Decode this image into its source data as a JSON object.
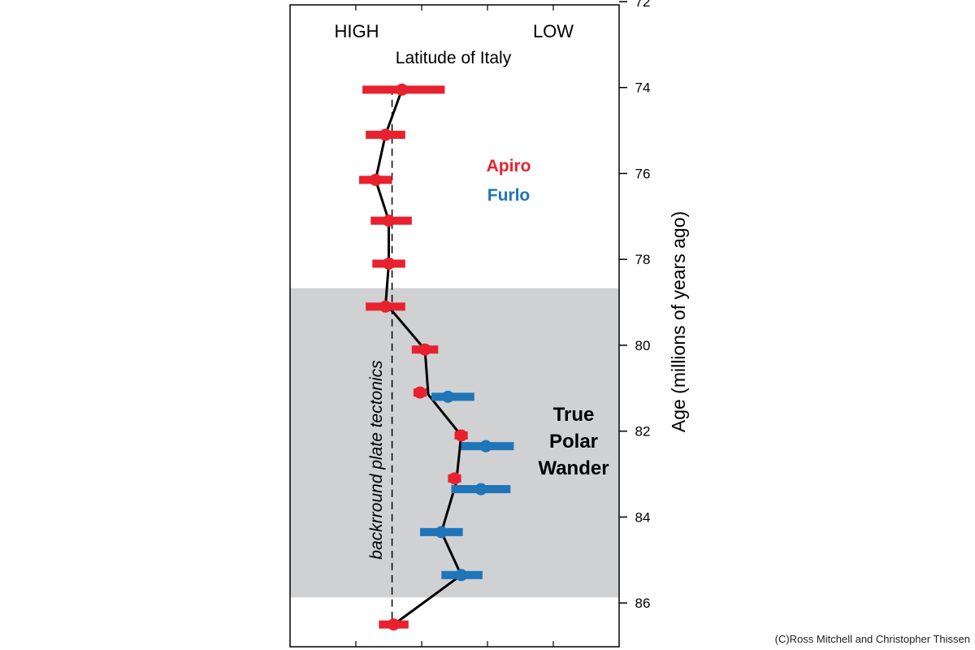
{
  "credit": "(C)Ross Mitchell and Christopher Thissen",
  "chart_data": {
    "type": "scatter",
    "title": "Latitude of Italy",
    "x_left_label": "HIGH",
    "x_right_label": "LOW",
    "ylabel": "Age (millions of years ago)",
    "ylim": [
      72,
      87
    ],
    "y_inverted": true,
    "yticks": [
      "72",
      "74",
      "76",
      "78",
      "80",
      "82",
      "84",
      "86"
    ],
    "xlim": [
      0,
      10
    ],
    "shaded_region": {
      "from": 78.67,
      "to": 85.87,
      "label_lines": [
        "True",
        "Polar",
        "Wander"
      ]
    },
    "background_line": {
      "x": 3.1,
      "label": "backrround plate tectonics"
    },
    "legend": [
      {
        "name": "Apiro",
        "color": "#e8212e"
      },
      {
        "name": "Furlo",
        "color": "#1f75b8"
      }
    ],
    "series": [
      {
        "name": "Apiro",
        "color": "#e8212e",
        "points": [
          {
            "age": 74.05,
            "x": 3.4,
            "err": [
              2.2,
              4.7
            ]
          },
          {
            "age": 75.1,
            "x": 2.9,
            "err": [
              2.3,
              3.5
            ]
          },
          {
            "age": 76.15,
            "x": 2.6,
            "err": [
              2.1,
              3.1
            ]
          },
          {
            "age": 77.1,
            "x": 3.0,
            "err": [
              2.45,
              3.7
            ]
          },
          {
            "age": 78.1,
            "x": 3.0,
            "err": [
              2.5,
              3.5
            ]
          },
          {
            "age": 79.1,
            "x": 2.9,
            "err": [
              2.3,
              3.5
            ]
          },
          {
            "age": 80.1,
            "x": 4.1,
            "err": [
              3.7,
              4.5
            ]
          },
          {
            "age": 81.1,
            "x": 3.95,
            "err": [
              3.75,
              4.15
            ]
          },
          {
            "age": 82.1,
            "x": 5.2,
            "err": [
              5.0,
              5.4
            ]
          },
          {
            "age": 83.1,
            "x": 5.0,
            "err": [
              4.8,
              5.2
            ]
          },
          {
            "age": 86.5,
            "x": 3.15,
            "err": [
              2.7,
              3.6
            ]
          }
        ]
      },
      {
        "name": "Furlo",
        "color": "#1f75b8",
        "points": [
          {
            "age": 81.2,
            "x": 4.8,
            "err": [
              4.3,
              5.6
            ]
          },
          {
            "age": 82.35,
            "x": 5.95,
            "err": [
              5.2,
              6.8
            ]
          },
          {
            "age": 83.35,
            "x": 5.8,
            "err": [
              4.9,
              6.7
            ]
          },
          {
            "age": 84.35,
            "x": 4.6,
            "err": [
              3.95,
              5.25
            ]
          },
          {
            "age": 85.35,
            "x": 5.2,
            "err": [
              4.6,
              5.85
            ]
          }
        ]
      }
    ],
    "connecting_line": [
      {
        "age": 74.05,
        "x": 3.4
      },
      {
        "age": 75.1,
        "x": 2.9
      },
      {
        "age": 76.15,
        "x": 2.6
      },
      {
        "age": 77.1,
        "x": 3.0
      },
      {
        "age": 78.1,
        "x": 3.0
      },
      {
        "age": 79.1,
        "x": 2.9
      },
      {
        "age": 79.2,
        "x": 3.1
      },
      {
        "age": 80.1,
        "x": 4.1
      },
      {
        "age": 81.15,
        "x": 4.2
      },
      {
        "age": 82.1,
        "x": 5.2
      },
      {
        "age": 83.2,
        "x": 5.05
      },
      {
        "age": 84.35,
        "x": 4.6
      },
      {
        "age": 85.35,
        "x": 5.2
      },
      {
        "age": 86.5,
        "x": 3.15
      }
    ]
  }
}
